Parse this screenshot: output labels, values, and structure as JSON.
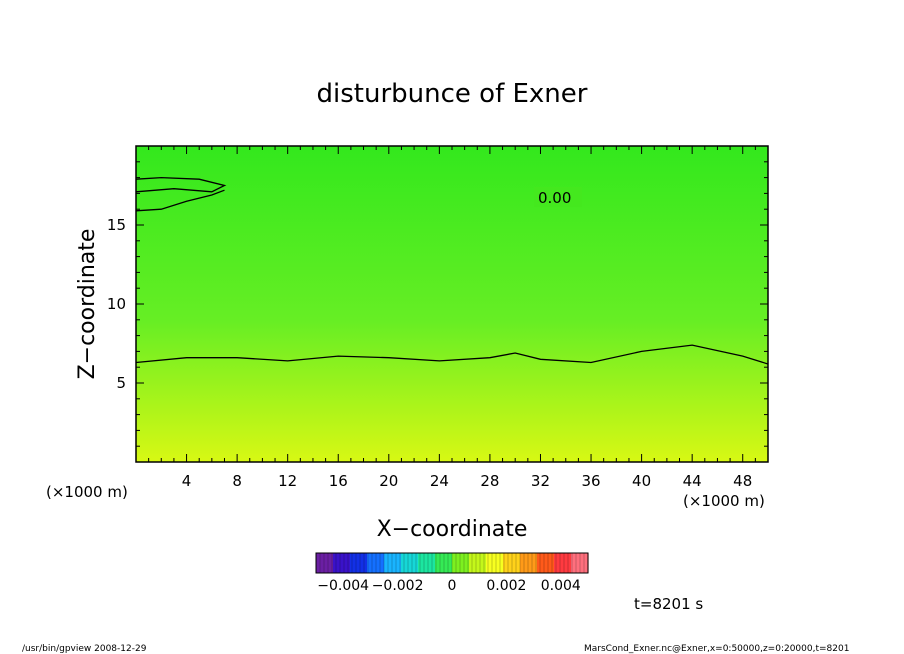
{
  "chart_data": {
    "type": "heatmap",
    "title": "disturbunce of Exner",
    "xlabel": "X−coordinate",
    "ylabel": "Z−coordinate",
    "x_unit_left": "(×1000 m)",
    "x_unit_right": "(×1000 m)",
    "xlim": [
      0,
      50
    ],
    "ylim": [
      0,
      20
    ],
    "x_ticks": [
      4,
      8,
      12,
      16,
      20,
      24,
      28,
      32,
      36,
      40,
      44,
      48
    ],
    "x_tick_labels": [
      "4",
      "8",
      "12",
      "16",
      "20",
      "24",
      "28",
      "32",
      "36",
      "40",
      "44",
      "48"
    ],
    "y_ticks": [
      5,
      10,
      15
    ],
    "y_tick_labels": [
      "5",
      "10",
      "15"
    ],
    "grid": false,
    "contour_label": "0.00",
    "contours": [
      {
        "name": "0.00",
        "x": [
          0,
          4,
          8,
          12,
          16,
          20,
          24,
          28,
          30,
          32,
          36,
          40,
          44,
          48,
          50
        ],
        "z": [
          6.3,
          6.6,
          6.6,
          6.4,
          6.7,
          6.6,
          6.4,
          6.6,
          6.9,
          6.5,
          6.3,
          7.0,
          7.4,
          6.7,
          6.2
        ]
      },
      {
        "name": "0.00",
        "x": [
          0,
          2,
          4,
          6,
          7
        ],
        "z": [
          15.9,
          16.0,
          16.5,
          16.9,
          17.2
        ]
      },
      {
        "name": "0.00",
        "x": [
          0,
          2,
          5,
          7,
          6,
          3,
          0
        ],
        "z": [
          17.9,
          18.0,
          17.9,
          17.5,
          17.1,
          17.3,
          17.1
        ]
      }
    ],
    "colorbar": {
      "min": -0.005,
      "max": 0.005,
      "tick_labels": [
        "−0.004",
        "−0.002",
        "0",
        "0.002",
        "0.004"
      ],
      "colors": [
        "#6b1fa3",
        "#3a12c9",
        "#1230e6",
        "#1470ff",
        "#19b4ff",
        "#16d7d7",
        "#1ce6a0",
        "#35ea55",
        "#7df01f",
        "#c4f71a",
        "#f7ff20",
        "#ffd21a",
        "#ff9a18",
        "#ff5a1a",
        "#ff3a40",
        "#ff6f7d"
      ]
    },
    "field_colors": {
      "top": "#33e81d",
      "middle": "#66ee24",
      "bottom": "#d8f814"
    }
  },
  "time_label": "t=8201 s",
  "footer_left": "/usr/bin/gpview  2008-12-29",
  "footer_right": "MarsCond_Exner.nc@Exner,x=0:50000,z=0:20000,t=8201"
}
